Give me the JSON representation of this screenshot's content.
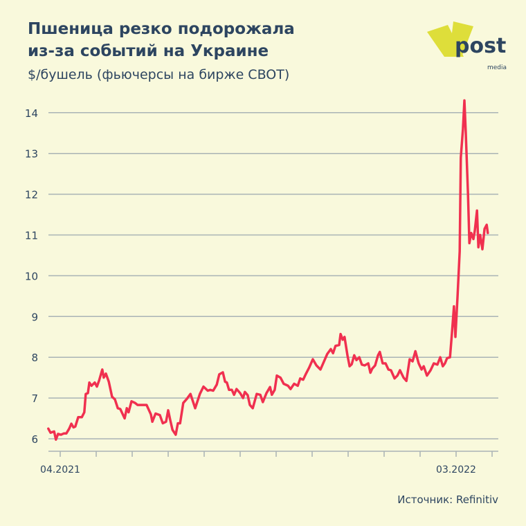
{
  "header": {
    "title_line1": "Пшеница резко подорожала",
    "title_line2": "из-за событий на Украине",
    "subtitle": "$/бушель (фьючерсы на бирже CBOT)"
  },
  "logo": {
    "text": "post",
    "subtext": "media"
  },
  "source": "Источник: Refinitiv",
  "colors": {
    "line": "#f0304f",
    "grid": "#a9b3b5",
    "text": "#2d4560",
    "background": "#f9f9dc",
    "logo_yellow": "#dede3a"
  },
  "chart_data": {
    "type": "line",
    "title": "Пшеница резко подорожала из-за событий на Украине",
    "ylabel": "$/бушель (фьючерсы на бирже CBOT)",
    "xlabel": "",
    "x_units": "months since 04.2021",
    "ylim": [
      5.7,
      14.3
    ],
    "xlim": [
      -0.33,
      12.17
    ],
    "yticks": [
      6,
      7,
      8,
      9,
      10,
      11,
      12,
      13,
      14
    ],
    "xticks": [
      0,
      1,
      2,
      3,
      4,
      5,
      6,
      7,
      8,
      9,
      10,
      11,
      12
    ],
    "xtick_labels": [
      {
        "x": 0,
        "label": "04.2021"
      },
      {
        "x": 11,
        "label": "03.2022"
      }
    ],
    "grid": true,
    "series": [
      {
        "name": "Wheat",
        "x": [
          -0.33,
          -0.27,
          -0.17,
          -0.12,
          -0.06,
          0.02,
          0.1,
          0.17,
          0.25,
          0.31,
          0.37,
          0.42,
          0.5,
          0.6,
          0.67,
          0.71,
          0.77,
          0.81,
          0.87,
          0.96,
          1.02,
          1.08,
          1.17,
          1.21,
          1.27,
          1.35,
          1.44,
          1.52,
          1.6,
          1.67,
          1.79,
          1.85,
          1.9,
          1.98,
          2.08,
          2.15,
          2.4,
          2.52,
          2.56,
          2.65,
          2.77,
          2.85,
          2.94,
          3.0,
          3.06,
          3.12,
          3.21,
          3.27,
          3.33,
          3.42,
          3.52,
          3.62,
          3.75,
          3.88,
          3.98,
          4.1,
          4.17,
          4.25,
          4.35,
          4.42,
          4.52,
          4.58,
          4.63,
          4.69,
          4.77,
          4.83,
          4.9,
          5.0,
          5.08,
          5.13,
          5.21,
          5.27,
          5.35,
          5.46,
          5.56,
          5.63,
          5.73,
          5.83,
          5.88,
          5.96,
          6.02,
          6.12,
          6.21,
          6.33,
          6.4,
          6.5,
          6.6,
          6.67,
          6.75,
          6.83,
          6.92,
          7.02,
          7.12,
          7.23,
          7.33,
          7.42,
          7.52,
          7.58,
          7.65,
          7.75,
          7.79,
          7.85,
          7.9,
          7.98,
          8.04,
          8.1,
          8.17,
          8.23,
          8.31,
          8.38,
          8.46,
          8.56,
          8.62,
          8.67,
          8.75,
          8.83,
          8.88,
          8.96,
          9.04,
          9.12,
          9.19,
          9.29,
          9.37,
          9.44,
          9.54,
          9.62,
          9.71,
          9.79,
          9.87,
          9.96,
          10.04,
          10.1,
          10.19,
          10.29,
          10.38,
          10.48,
          10.56,
          10.63,
          10.69,
          10.75,
          10.83,
          10.88,
          10.94,
          10.98,
          11.04,
          11.1,
          11.13,
          11.19,
          11.23,
          11.27,
          11.33,
          11.37,
          11.42,
          11.48,
          11.52,
          11.58,
          11.62,
          11.67,
          11.73,
          11.79,
          11.85,
          11.88
        ],
        "values": [
          6.25,
          6.15,
          6.18,
          5.98,
          6.12,
          6.1,
          6.13,
          6.13,
          6.25,
          6.37,
          6.28,
          6.3,
          6.53,
          6.53,
          6.65,
          7.1,
          7.12,
          7.38,
          7.3,
          7.38,
          7.28,
          7.43,
          7.7,
          7.5,
          7.6,
          7.4,
          7.03,
          6.97,
          6.75,
          6.73,
          6.5,
          6.75,
          6.65,
          6.92,
          6.88,
          6.83,
          6.83,
          6.6,
          6.42,
          6.62,
          6.58,
          6.38,
          6.42,
          6.7,
          6.45,
          6.22,
          6.1,
          6.38,
          6.38,
          6.88,
          6.98,
          7.1,
          6.75,
          7.1,
          7.28,
          7.18,
          7.2,
          7.18,
          7.33,
          7.58,
          7.63,
          7.4,
          7.38,
          7.2,
          7.2,
          7.08,
          7.22,
          7.12,
          7.0,
          7.15,
          7.07,
          6.83,
          6.75,
          7.1,
          7.08,
          6.9,
          7.12,
          7.27,
          7.08,
          7.2,
          7.55,
          7.5,
          7.35,
          7.3,
          7.22,
          7.35,
          7.3,
          7.48,
          7.45,
          7.6,
          7.75,
          7.95,
          7.8,
          7.7,
          7.9,
          8.08,
          8.2,
          8.1,
          8.28,
          8.3,
          8.57,
          8.43,
          8.5,
          8.05,
          7.78,
          7.83,
          8.05,
          7.93,
          8.0,
          7.82,
          7.8,
          7.85,
          7.62,
          7.72,
          7.8,
          8.05,
          8.13,
          7.85,
          7.85,
          7.7,
          7.68,
          7.48,
          7.55,
          7.68,
          7.5,
          7.42,
          7.95,
          7.9,
          8.15,
          7.85,
          7.7,
          7.78,
          7.55,
          7.68,
          7.85,
          7.82,
          8.0,
          7.78,
          7.85,
          7.98,
          8.0,
          8.55,
          9.25,
          8.5,
          9.5,
          10.6,
          12.9,
          13.6,
          14.3,
          13.5,
          12.0,
          10.8,
          11.05,
          10.9,
          11.1,
          11.6,
          10.7,
          11.0,
          10.65,
          11.15,
          11.25,
          11.05
        ]
      }
    ]
  }
}
